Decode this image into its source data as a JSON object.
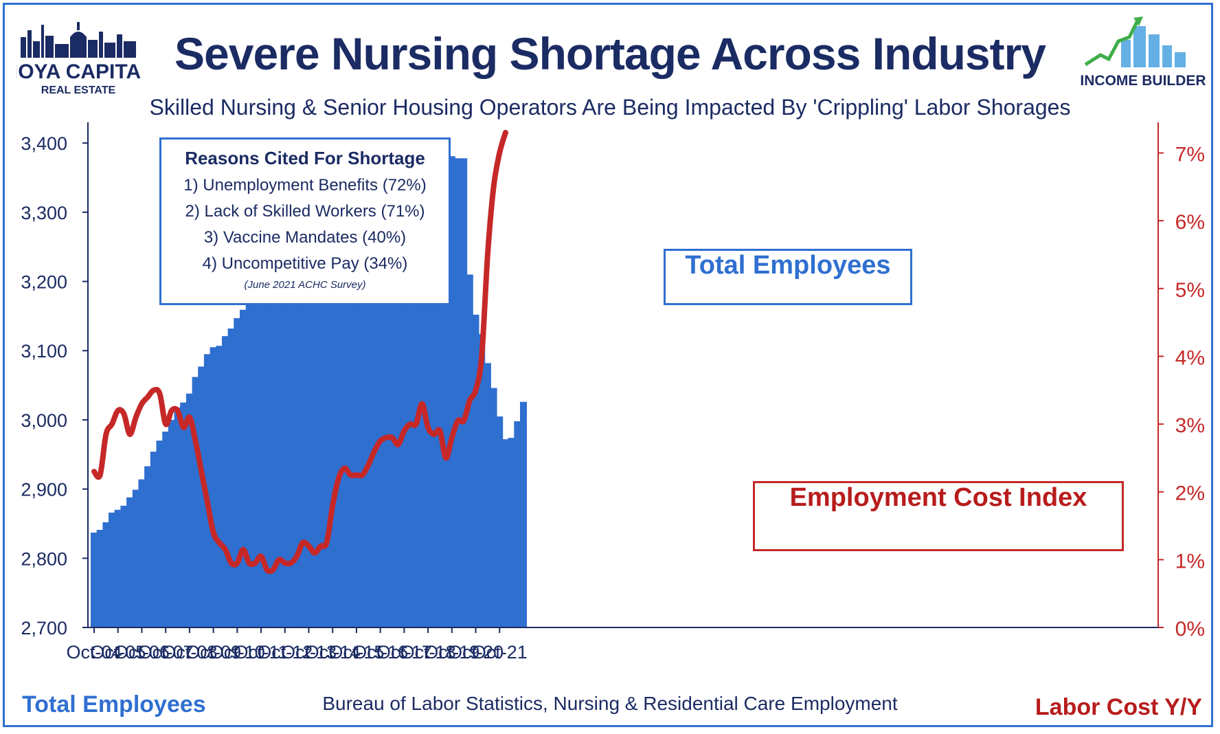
{
  "header": {
    "title": "Severe Nursing Shortage Across Industry",
    "subtitle": "Skilled Nursing & Senior Housing Operators Are Being Impacted By 'Crippling' Labor Shorages"
  },
  "logos": {
    "left": {
      "line1": "HOYA CAPITAL",
      "line2": "REAL ESTATE"
    },
    "right": {
      "line1": "INCOME BUILDER"
    }
  },
  "reasons": {
    "title": "Reasons Cited For Shortage",
    "items": [
      "1) Unemployment Benefits (72%)",
      "2) Lack of Skilled Workers (71%)",
      "3) Vaccine Mandates (40%)",
      "4) Uncompetitive Pay (34%)"
    ],
    "note": "(June 2021 ACHC Survey)"
  },
  "labels": {
    "employees": "Total Employees",
    "eci": "Employment Cost Index"
  },
  "footer": {
    "left": "Total Employees",
    "center": "Bureau of Labor Statistics, Nursing & Residential Care Employment",
    "right": "Labor Cost Y/Y"
  },
  "colors": {
    "bars": "#2f6fd0",
    "line": "#c62828",
    "navy": "#1b2b63"
  },
  "chart_data": {
    "type": "bar",
    "x_tick_labels": [
      "Oct-04",
      "Oct-05",
      "Oct-06",
      "Oct-07",
      "Oct-08",
      "Oct-09",
      "Oct-10",
      "Oct-11",
      "Oct-12",
      "Oct-13",
      "Oct-14",
      "Oct-15",
      "Oct-16",
      "Oct-17",
      "Oct-18",
      "Oct-19",
      "Oct-20",
      "Oct-21"
    ],
    "x_start": "Oct-04",
    "bar_interval_months": 3,
    "y_left": {
      "ticks": [
        "2,700",
        "2,800",
        "2,900",
        "3,000",
        "3,100",
        "3,200",
        "3,300",
        "3,400"
      ],
      "ylim": [
        2700,
        3420
      ]
    },
    "y_right": {
      "ticks": [
        "0%",
        "1%",
        "2%",
        "3%",
        "4%",
        "5%",
        "6%",
        "7%"
      ],
      "ylim": [
        0,
        7.35
      ]
    },
    "series": [
      {
        "name": "Total Employees",
        "axis": "left",
        "type": "bar",
        "values": [
          2837,
          2841,
          2852,
          2866,
          2870,
          2876,
          2888,
          2899,
          2914,
          2933,
          2954,
          2970,
          2983,
          3000,
          3018,
          3025,
          3038,
          3062,
          3077,
          3095,
          3105,
          3107,
          3121,
          3132,
          3147,
          3159,
          3168,
          3178,
          3176,
          3184,
          3194,
          3201,
          3209,
          3217,
          3228,
          3235,
          3243,
          3251,
          3257,
          3260,
          3271,
          3281,
          3286,
          3299,
          3304,
          3306,
          3316,
          3328,
          3334,
          3344,
          3350,
          3353,
          3352,
          3356,
          3357,
          3357,
          3357,
          3362,
          3369,
          3377,
          3381,
          3378,
          3378,
          3210,
          3152,
          3124,
          3082,
          3046,
          3005,
          2972,
          2974,
          2998,
          3026
        ]
      },
      {
        "name": "Employment Cost Index",
        "axis": "right",
        "type": "line",
        "values": [
          2.3,
          2.25,
          2.85,
          3.0,
          3.2,
          3.15,
          2.85,
          3.1,
          3.3,
          3.4,
          3.5,
          3.45,
          3.0,
          3.2,
          3.2,
          2.95,
          3.1,
          2.75,
          2.3,
          1.85,
          1.4,
          1.25,
          1.15,
          0.95,
          0.95,
          1.15,
          0.95,
          0.95,
          1.05,
          0.85,
          0.85,
          1.0,
          0.95,
          0.95,
          1.05,
          1.25,
          1.2,
          1.1,
          1.2,
          1.25,
          1.8,
          2.2,
          2.35,
          2.25,
          2.25,
          2.25,
          2.4,
          2.6,
          2.75,
          2.8,
          2.8,
          2.7,
          2.9,
          3.0,
          3.0,
          3.3,
          2.95,
          2.85,
          2.9,
          2.5,
          2.8,
          3.05,
          3.05,
          3.35,
          3.5,
          4.0,
          5.5,
          6.5,
          7.0,
          7.3
        ]
      }
    ]
  }
}
